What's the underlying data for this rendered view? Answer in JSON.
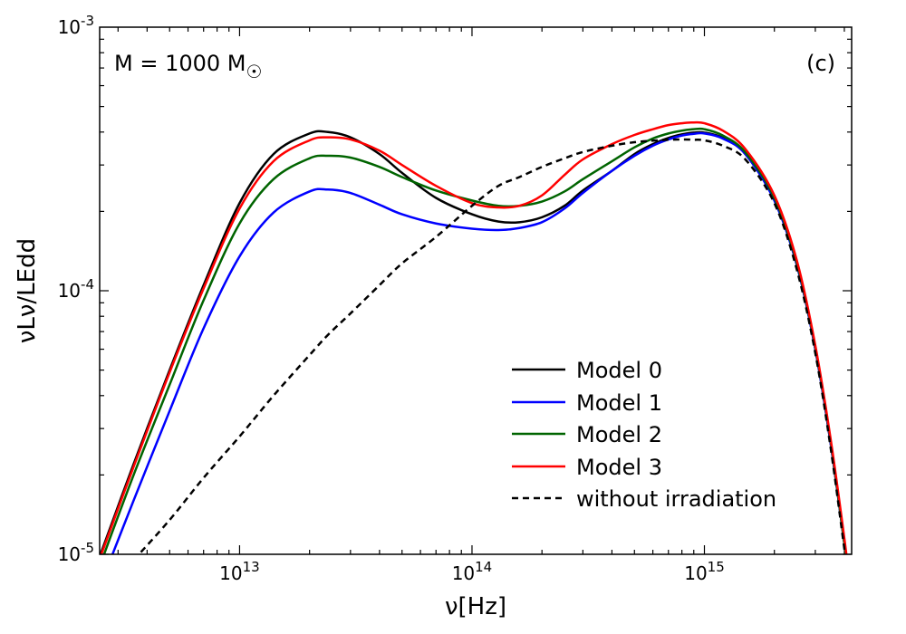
{
  "chart_data": {
    "type": "line",
    "title": "",
    "xlabel": "ν[Hz]",
    "ylabel": "νLν/LEdd",
    "xscale": "log",
    "yscale": "log",
    "xlim": [
      2500000000000.0,
      4300000000000000.0
    ],
    "ylim": [
      1e-05,
      0.001
    ],
    "grid": false,
    "legend_position": "lower-right",
    "x_tick_labels": [
      {
        "value": 10000000000000.0,
        "base": "10",
        "exp": "13"
      },
      {
        "value": 100000000000000.0,
        "base": "10",
        "exp": "14"
      },
      {
        "value": 1000000000000000.0,
        "base": "10",
        "exp": "15"
      }
    ],
    "y_tick_labels": [
      {
        "value": 0.001,
        "text": "10-3"
      },
      {
        "value": 0.0001,
        "text": "10-4"
      },
      {
        "value": 1e-05,
        "text": "10-5"
      }
    ],
    "annotations": {
      "mass_label": "M = 1000 M",
      "mass_symbol": "☉",
      "panel_label": "(c)"
    },
    "x": [
      2500000000000.0,
      3500000000000.0,
      5000000000000.0,
      7000000000000.0,
      10000000000000.0,
      14000000000000.0,
      20000000000000.0,
      24000000000000.0,
      30000000000000.0,
      40000000000000.0,
      50000000000000.0,
      70000000000000.0,
      100000000000000.0,
      130000000000000.0,
      160000000000000.0,
      200000000000000.0,
      250000000000000.0,
      300000000000000.0,
      400000000000000.0,
      500000000000000.0,
      600000000000000.0,
      700000000000000.0,
      800000000000000.0,
      900000000000000.0,
      1000000000000000.0,
      1200000000000000.0,
      1500000000000000.0,
      2000000000000000.0,
      2500000000000000.0,
      3000000000000000.0,
      3500000000000000.0,
      4000000000000000.0,
      4200000000000000.0
    ],
    "series": [
      {
        "name": "Model 0",
        "color": "#000000",
        "dash": "solid",
        "values": [
          9.8e-06,
          2.2e-05,
          5e-05,
          0.000105,
          0.000215,
          0.00033,
          0.000395,
          0.0004,
          0.000382,
          0.00033,
          0.00028,
          0.000225,
          0.000195,
          0.000183,
          0.000182,
          0.00019,
          0.00021,
          0.00024,
          0.000285,
          0.00033,
          0.00036,
          0.00038,
          0.000392,
          0.000398,
          0.000398,
          0.00038,
          0.00033,
          0.00022,
          0.000125,
          6e-05,
          2.6e-05,
          1.1e-05,
          8e-06
        ]
      },
      {
        "name": "Model 1",
        "color": "#0000ff",
        "dash": "solid",
        "values": [
          7.5e-06,
          1.6e-05,
          3.5e-05,
          7.2e-05,
          0.000135,
          0.000198,
          0.000238,
          0.000242,
          0.000235,
          0.000212,
          0.000195,
          0.00018,
          0.000172,
          0.00017,
          0.000173,
          0.000182,
          0.000205,
          0.000235,
          0.000285,
          0.000325,
          0.000355,
          0.000375,
          0.000388,
          0.000394,
          0.000395,
          0.000378,
          0.00033,
          0.00022,
          0.000125,
          6e-05,
          2.6e-05,
          1.1e-05,
          8e-06
        ]
      },
      {
        "name": "Model 2",
        "color": "#006400",
        "dash": "solid",
        "values": [
          9e-06,
          2e-05,
          4.4e-05,
          9.2e-05,
          0.00018,
          0.000265,
          0.000318,
          0.000325,
          0.00032,
          0.000295,
          0.00027,
          0.00024,
          0.00022,
          0.00021,
          0.00021,
          0.000218,
          0.000238,
          0.000265,
          0.00031,
          0.00035,
          0.000378,
          0.000395,
          0.000405,
          0.00041,
          0.00041,
          0.000388,
          0.000335,
          0.000225,
          0.000127,
          6.1e-05,
          2.65e-05,
          1.1e-05,
          8e-06
        ]
      },
      {
        "name": "Model 3",
        "color": "#ff0000",
        "dash": "solid",
        "values": [
          9.6e-06,
          2.15e-05,
          4.9e-05,
          0.000102,
          0.000205,
          0.00031,
          0.000372,
          0.000382,
          0.000375,
          0.00034,
          0.0003,
          0.00025,
          0.000215,
          0.000207,
          0.00021,
          0.00023,
          0.000275,
          0.000315,
          0.00036,
          0.00039,
          0.00041,
          0.000425,
          0.000432,
          0.000435,
          0.000432,
          0.000405,
          0.000345,
          0.00023,
          0.00013,
          6.2e-05,
          2.7e-05,
          1.15e-05,
          8e-06
        ]
      },
      {
        "name": "without irradiation",
        "color": "#000000",
        "dash": "dashed",
        "values": [
          null,
          9.5e-06,
          1.35e-05,
          1.95e-05,
          2.8e-05,
          4e-05,
          5.7e-05,
          6.8e-05,
          8.2e-05,
          0.000105,
          0.000127,
          0.00016,
          0.00021,
          0.00025,
          0.00027,
          0.000295,
          0.000318,
          0.000336,
          0.000355,
          0.000366,
          0.000371,
          0.000374,
          0.000375,
          0.000374,
          0.000372,
          0.000355,
          0.000315,
          0.000215,
          0.00012,
          5.8e-05,
          2.5e-05,
          1.05e-05,
          7.8e-06
        ]
      }
    ]
  }
}
